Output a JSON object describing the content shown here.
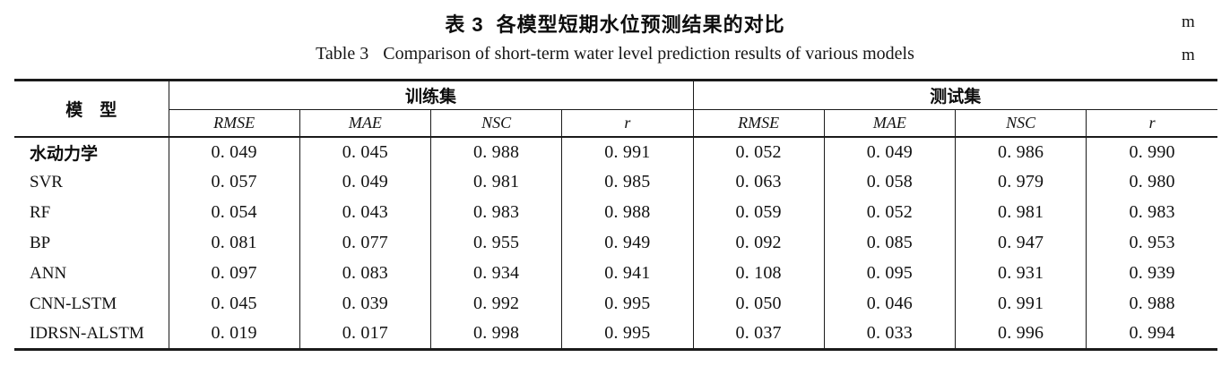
{
  "header": {
    "title_zh_label": "表 3",
    "title_zh_text": "各模型短期水位预测结果的对比",
    "title_en_label": "Table 3",
    "title_en_text": "Comparison of short-term water level prediction results of various models",
    "unit_top": "m",
    "unit_bottom": "m"
  },
  "table": {
    "model_header": "模　型",
    "train_group_label": "训练集",
    "test_group_label": "测试集",
    "metric_headers": [
      "RMSE",
      "MAE",
      "NSC",
      "r"
    ],
    "rows": [
      {
        "model": "水动力学",
        "train": [
          "0. 049",
          "0. 045",
          "0. 988",
          "0. 991"
        ],
        "test": [
          "0. 052",
          "0. 049",
          "0. 986",
          "0. 990"
        ]
      },
      {
        "model": "SVR",
        "train": [
          "0. 057",
          "0. 049",
          "0. 981",
          "0. 985"
        ],
        "test": [
          "0. 063",
          "0. 058",
          "0. 979",
          "0. 980"
        ]
      },
      {
        "model": "RF",
        "train": [
          "0. 054",
          "0. 043",
          "0. 983",
          "0. 988"
        ],
        "test": [
          "0. 059",
          "0. 052",
          "0. 981",
          "0. 983"
        ]
      },
      {
        "model": "BP",
        "train": [
          "0. 081",
          "0. 077",
          "0. 955",
          "0. 949"
        ],
        "test": [
          "0. 092",
          "0. 085",
          "0. 947",
          "0. 953"
        ]
      },
      {
        "model": "ANN",
        "train": [
          "0. 097",
          "0. 083",
          "0. 934",
          "0. 941"
        ],
        "test": [
          "0. 108",
          "0. 095",
          "0. 931",
          "0. 939"
        ]
      },
      {
        "model": "CNN-LSTM",
        "train": [
          "0. 045",
          "0. 039",
          "0. 992",
          "0. 995"
        ],
        "test": [
          "0. 050",
          "0. 046",
          "0. 991",
          "0. 988"
        ]
      },
      {
        "model": "IDRSN-ALSTM",
        "train": [
          "0. 019",
          "0. 017",
          "0. 998",
          "0. 995"
        ],
        "test": [
          "0. 037",
          "0. 033",
          "0. 996",
          "0. 994"
        ]
      }
    ]
  }
}
